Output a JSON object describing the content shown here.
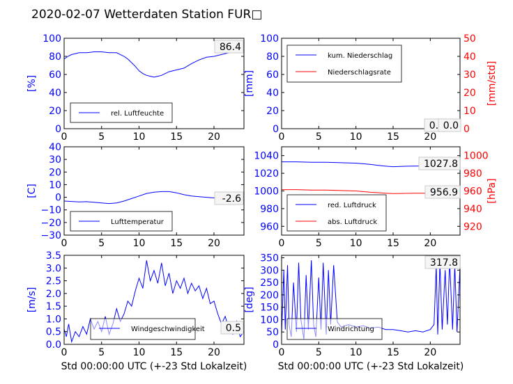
{
  "title": "2020-02-07 Wetterdaten Station FUR□",
  "colors": {
    "primary": "#0000ff",
    "secondary": "#ff0000",
    "axes": "#000000"
  },
  "chart_data": [
    {
      "type": "line",
      "panel": "humidity",
      "ylabel": "[%]",
      "xlabel": "",
      "xlim": [
        0,
        24
      ],
      "ylim": [
        0,
        100
      ],
      "xticks": [
        "0",
        "5",
        "10",
        "15",
        "20"
      ],
      "yticks": [
        "0",
        "20",
        "40",
        "60",
        "80",
        "100"
      ],
      "legend": "bottom-left",
      "current_value": "86.4",
      "series": [
        {
          "name": "rel. Luftfeuchte",
          "color": "#0000ff",
          "x": [
            0,
            0.5,
            1,
            1.5,
            2,
            3,
            4,
            5,
            6,
            7,
            7.5,
            8,
            8.5,
            9,
            9.5,
            10,
            10.5,
            11,
            11.5,
            12,
            12.5,
            13,
            13.5,
            14,
            15,
            16,
            17,
            18,
            19,
            20,
            21,
            22,
            23,
            24
          ],
          "y": [
            77,
            80,
            82,
            83,
            84,
            84,
            85,
            85,
            84,
            84,
            82,
            80,
            77,
            73,
            69,
            64,
            61,
            59,
            58,
            57,
            58,
            59,
            61,
            63,
            65,
            67,
            72,
            76,
            79,
            80,
            82,
            84,
            85,
            87
          ]
        }
      ]
    },
    {
      "type": "line",
      "panel": "precipitation",
      "ylabel": "[mm]",
      "y2label": "[mm/std]",
      "xlim": [
        0,
        24
      ],
      "ylim": [
        0,
        100
      ],
      "y2lim": [
        0,
        50
      ],
      "xticks": [
        "0",
        "5",
        "10",
        "15",
        "20"
      ],
      "yticks": [
        "0",
        "20",
        "40",
        "60",
        "80",
        "100"
      ],
      "y2ticks": [
        "0",
        "10",
        "20",
        "30",
        "40",
        "50"
      ],
      "legend": "top-left",
      "current_values": [
        "0.0",
        "0.0"
      ],
      "series": [
        {
          "name": "kum. Niederschlag",
          "color": "#0000ff",
          "axis": "left",
          "x": [
            0,
            24
          ],
          "y": [
            0,
            0
          ]
        },
        {
          "name": "Niederschlagsrate",
          "color": "#ff0000",
          "axis": "right",
          "x": [
            0,
            24
          ],
          "y": [
            0,
            0
          ]
        }
      ]
    },
    {
      "type": "line",
      "panel": "temperature",
      "ylabel": "[C]",
      "xlim": [
        0,
        24
      ],
      "ylim": [
        -30,
        40
      ],
      "xticks": [
        "0",
        "5",
        "10",
        "15",
        "20"
      ],
      "yticks": [
        "−30",
        "−20",
        "−10",
        "0",
        "10",
        "20",
        "30",
        "40"
      ],
      "legend": "bottom-left",
      "current_value": "-2.6",
      "series": [
        {
          "name": "Lufttemperatur",
          "color": "#0000ff",
          "x": [
            0,
            1,
            2,
            3,
            4,
            5,
            6,
            7,
            8,
            9,
            10,
            11,
            12,
            13,
            14,
            15,
            16,
            17,
            18,
            19,
            20,
            21,
            22,
            23,
            24
          ],
          "y": [
            -3,
            -3.3,
            -3.7,
            -3.5,
            -4,
            -4.5,
            -5,
            -4.5,
            -3,
            -1,
            1,
            3,
            4,
            4.5,
            4.5,
            3.5,
            2,
            1,
            0.5,
            0,
            -0.5,
            -1,
            -1.6,
            -2.1,
            -2.6
          ]
        }
      ]
    },
    {
      "type": "line",
      "panel": "pressure",
      "y2label": "[hPa]",
      "xlim": [
        0,
        24
      ],
      "ylim": [
        950,
        1050
      ],
      "y2lim": [
        910,
        1010
      ],
      "xticks": [
        "0",
        "5",
        "10",
        "15",
        "20"
      ],
      "yticks": [
        "960",
        "980",
        "1000",
        "1020",
        "1040"
      ],
      "y2ticks": [
        "920",
        "940",
        "960",
        "980",
        "1000"
      ],
      "legend": "bottom-left",
      "current_values": [
        "1027.8",
        "956.9"
      ],
      "series": [
        {
          "name": "red. Luftdruck",
          "color": "#0000ff",
          "axis": "left",
          "x": [
            0,
            2,
            4,
            6,
            8,
            10,
            12,
            13,
            14,
            15,
            16,
            17,
            18,
            19,
            20,
            21,
            22,
            23,
            24
          ],
          "y": [
            1033,
            1033,
            1032.5,
            1032.5,
            1032,
            1031.5,
            1030,
            1029,
            1028,
            1027.5,
            1027.8,
            1028,
            1028.2,
            1028.3,
            1028.2,
            1028,
            1027.9,
            1027.8,
            1027.8
          ]
        },
        {
          "name": "abs. Luftdruck",
          "color": "#ff0000",
          "axis": "right",
          "x": [
            0,
            2,
            4,
            6,
            8,
            10,
            12,
            13,
            14,
            15,
            16,
            17,
            18,
            19,
            20,
            21,
            22,
            23,
            24
          ],
          "y": [
            961.5,
            961.5,
            961,
            961,
            960.5,
            960,
            958.5,
            958,
            957.5,
            957,
            957.2,
            957.3,
            957.4,
            957.5,
            957.3,
            957.2,
            957,
            956.9,
            956.9
          ]
        }
      ]
    },
    {
      "type": "line",
      "panel": "wind-speed",
      "ylabel": "[m/s]",
      "xlabel": "Std 00:00:00 UTC (+-23 Std Lokalzeit)",
      "xlim": [
        0,
        24
      ],
      "ylim": [
        0,
        3.5
      ],
      "xticks": [
        "0",
        "5",
        "10",
        "15",
        "20"
      ],
      "yticks": [
        "0.0",
        "0.5",
        "1.0",
        "1.5",
        "2.0",
        "2.5",
        "3.0",
        "3.5"
      ],
      "legend": "bottom-center",
      "current_value": "0.5",
      "series": [
        {
          "name": "Windgeschwindigkeit",
          "color": "#0000ff",
          "x": [
            0,
            0.3,
            0.6,
            1,
            1.5,
            2,
            2.5,
            3,
            3.5,
            4,
            4.5,
            5,
            5.5,
            6,
            6.5,
            7,
            7.5,
            8,
            8.5,
            9,
            9.5,
            10,
            10.5,
            11,
            11.5,
            12,
            12.5,
            13,
            13.5,
            14,
            14.5,
            15,
            15.5,
            16,
            16.5,
            17,
            17.5,
            18,
            18.5,
            19,
            19.5,
            20,
            20.5,
            21,
            21.5,
            22,
            22.5,
            23,
            23.5,
            24
          ],
          "y": [
            0.6,
            0.3,
            0.8,
            0.1,
            0.5,
            0.3,
            0.7,
            0.4,
            1.0,
            0.6,
            0.9,
            0.5,
            1.1,
            0.4,
            0.8,
            1.4,
            0.9,
            1.2,
            1.7,
            1.5,
            2.1,
            2.6,
            2.2,
            3.3,
            2.5,
            2.9,
            2.4,
            3.2,
            2.3,
            2.8,
            2.0,
            2.5,
            2.2,
            2.6,
            2.0,
            2.4,
            2.1,
            2.3,
            1.8,
            2.2,
            1.6,
            1.7,
            1.2,
            0.8,
            1.1,
            0.6,
            0.4,
            0.9,
            0.3,
            0.5
          ]
        }
      ]
    },
    {
      "type": "line",
      "panel": "wind-direction",
      "ylabel": "[deg]",
      "xlabel": "Std 00:00:00 UTC (+-23 Std Lokalzeit)",
      "xlim": [
        0,
        24
      ],
      "ylim": [
        0,
        360
      ],
      "xticks": [
        "0",
        "5",
        "10",
        "15",
        "20"
      ],
      "yticks": [
        "0",
        "50",
        "100",
        "150",
        "200",
        "250",
        "300",
        "350"
      ],
      "legend": "bottom-left",
      "current_value": "317.8",
      "series": [
        {
          "name": "Windrichtung",
          "color": "#0000ff",
          "x": [
            0,
            0.3,
            0.5,
            0.8,
            1,
            1.3,
            1.6,
            2,
            2.3,
            2.6,
            3,
            3.3,
            3.6,
            4,
            4.3,
            4.6,
            5,
            5.3,
            5.6,
            6,
            6.3,
            6.6,
            7,
            7.5,
            8,
            9,
            10,
            11,
            12,
            13,
            14,
            15,
            16,
            17,
            18,
            19,
            20,
            20.5,
            20.8,
            21,
            21.3,
            21.6,
            22,
            22.3,
            22.6,
            23,
            23.3,
            23.6,
            24
          ],
          "y": [
            40,
            300,
            60,
            320,
            80,
            30,
            250,
            50,
            330,
            100,
            20,
            280,
            60,
            340,
            80,
            30,
            270,
            60,
            330,
            40,
            300,
            80,
            320,
            90,
            70,
            80,
            70,
            75,
            65,
            70,
            60,
            60,
            55,
            50,
            55,
            50,
            60,
            80,
            320,
            40,
            330,
            60,
            300,
            80,
            340,
            60,
            320,
            50,
            318
          ]
        }
      ]
    }
  ]
}
